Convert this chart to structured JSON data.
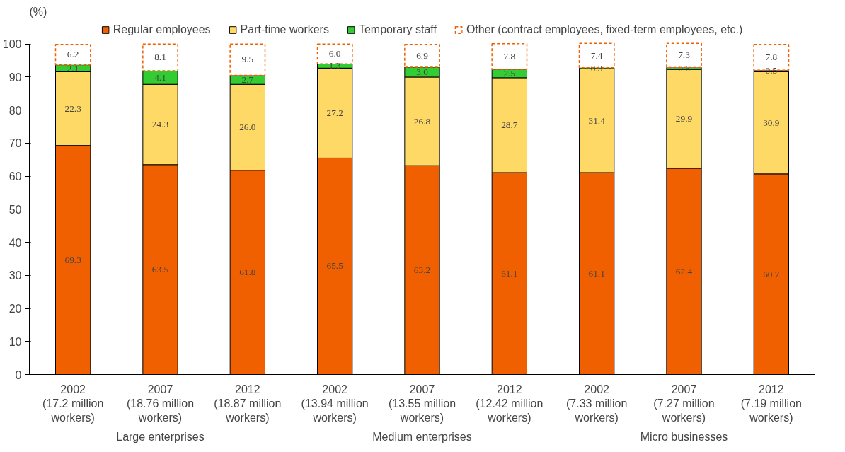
{
  "chart_data": {
    "type": "bar",
    "stacked": true,
    "ylabel": "(%)",
    "categories": [
      "2002\n(17.2 million\nworkers)",
      "2007\n(18.76 million\nworkers)",
      "2012\n(18.87 million\nworkers)",
      "2002\n(13.94 million\nworkers)",
      "2007\n(13.55 million\nworkers)",
      "2012\n(12.42 million\nworkers)",
      "2002\n(7.33 million\nworkers)",
      "2007\n(7.27 million\nworkers)",
      "2012\n(7.19 million\nworkers)"
    ],
    "series": [
      {
        "name": "Regular employees",
        "color": "#f06000",
        "values": [
          69.3,
          63.5,
          61.8,
          65.5,
          63.2,
          61.1,
          61.1,
          62.4,
          60.7
        ],
        "value_labels": [
          "69.3",
          "63.5",
          "61.8",
          "65.5",
          "63.2",
          "61.1",
          "61.1",
          "62.4",
          "60.7"
        ]
      },
      {
        "name": "Part-time workers",
        "color": "#ffd966",
        "values": [
          22.3,
          24.3,
          26.0,
          27.2,
          26.8,
          28.7,
          31.4,
          29.9,
          30.9
        ],
        "value_labels": [
          "22.3",
          "24.3",
          "26.0",
          "27.2",
          "26.8",
          "28.7",
          "31.4",
          "29.9",
          "30.9"
        ]
      },
      {
        "name": "Temporary staff",
        "color": "#33cc33",
        "values": [
          2.1,
          4.1,
          2.7,
          1.3,
          3.0,
          2.5,
          0.3,
          0.6,
          0.5
        ],
        "value_labels": [
          "2.1",
          "4.1",
          "2.7",
          "1.3",
          "3.0",
          "2.5",
          "0.3",
          "0.6",
          "0.5"
        ]
      },
      {
        "name": "Other (contract employees, fixed-term employees, etc.)",
        "color": "#ffffff",
        "values": [
          6.2,
          8.1,
          9.5,
          6.0,
          6.9,
          7.8,
          7.4,
          7.3,
          7.8
        ],
        "value_labels": [
          "6.2",
          "8.1",
          "9.5",
          "6.0",
          "6.9",
          "7.8",
          "7.4",
          "7.3",
          "7.8"
        ]
      }
    ],
    "ylim": [
      0,
      100
    ],
    "yticks": [
      0,
      10,
      20,
      30,
      40,
      50,
      60,
      70,
      80,
      90,
      100
    ],
    "grid": false,
    "legend": "top",
    "annotations": [
      "Large enterprises",
      "Medium enterprises",
      "Micro businesses"
    ]
  }
}
